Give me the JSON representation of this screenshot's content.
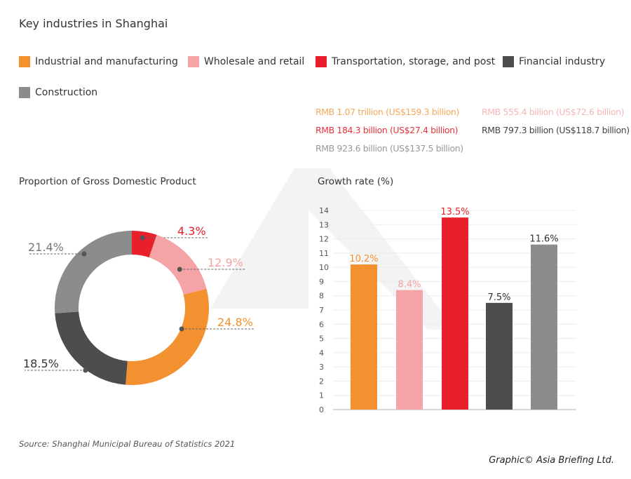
{
  "title": "Key industries in Shanghai",
  "legend": [
    {
      "label": "Industrial and manufacturing",
      "color": "#f39130"
    },
    {
      "label": "Wholesale and retail",
      "color": "#f4a3a7"
    },
    {
      "label": "Transportation, storage, and post",
      "color": "#e8202c"
    },
    {
      "label": "Financial industry",
      "color": "#4d4d4d"
    },
    {
      "label": "Construction",
      "color": "#8c8c8d"
    }
  ],
  "values": [
    {
      "text": "RMB 1.07 trillion (US$159.3 billion)",
      "color": "#f5a85a"
    },
    {
      "text": "RMB 555.4 billion (US$72.6 billion)",
      "color": "#f6b6b9"
    },
    {
      "text": "RMB 184.3 billion (US$27.4 billion)",
      "color": "#e8333c"
    },
    {
      "text": "RMB 797.3 billion (US$118.7 billion)",
      "color": "#444444"
    },
    {
      "text": "RMB 923.6 billion (US$137.5 billion)",
      "color": "#999999"
    }
  ],
  "source": "Source: Shanghai  Municipal Bureau of Statistics 2021",
  "credit": "Graphic© Asia Briefing Ltd.",
  "chart_data": [
    {
      "type": "pie",
      "subtype": "donut",
      "title": "Proportion of Gross Domestic Product",
      "categories": [
        "Transportation, storage, and post",
        "Wholesale and retail",
        "Industrial and manufacturing",
        "Financial industry",
        "Construction"
      ],
      "values": [
        4.3,
        12.9,
        24.8,
        18.5,
        21.4
      ],
      "labels": [
        "4.3%",
        "12.9%",
        "24.8%",
        "18.5%",
        "21.4%"
      ],
      "colors": [
        "#e8202c",
        "#f4a3a7",
        "#f39130",
        "#4d4d4d",
        "#8c8c8d"
      ],
      "label_colors": [
        "#e8202c",
        "#f4a3a7",
        "#f39130",
        "#333333",
        "#777777"
      ]
    },
    {
      "type": "bar",
      "title": "Growth rate (%)",
      "categories": [
        "Industrial and manufacturing",
        "Wholesale and retail",
        "Transportation, storage, and post",
        "Financial industry",
        "Construction"
      ],
      "values": [
        10.2,
        8.4,
        13.5,
        7.5,
        11.6
      ],
      "labels": [
        "10.2%",
        "8.4%",
        "13.5%",
        "7.5%",
        "11.6%"
      ],
      "colors": [
        "#f39130",
        "#f4a3a7",
        "#e8202c",
        "#4d4d4d",
        "#8c8c8d"
      ],
      "label_colors": [
        "#f39130",
        "#f4a3a7",
        "#e8202c",
        "#333333",
        "#333333"
      ],
      "ylim": [
        0,
        14
      ],
      "yticks": [
        "0",
        "1",
        "2",
        "3",
        "4",
        "5",
        "6",
        "7",
        "8",
        "9",
        "10",
        "11",
        "12",
        "13",
        "14"
      ],
      "grid": true
    }
  ]
}
